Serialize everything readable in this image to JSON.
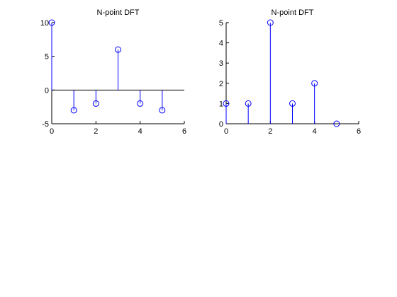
{
  "chart_data": [
    {
      "type": "stem",
      "title": "N-point DFT",
      "x": [
        0,
        1,
        2,
        3,
        4,
        5
      ],
      "values": [
        10,
        -3,
        -2,
        6,
        -2,
        -3
      ],
      "xlim": [
        0,
        6
      ],
      "ylim": [
        -5,
        10
      ],
      "xticks": [
        "0",
        "2",
        "4",
        "6"
      ],
      "yticks": [
        "-5",
        "0",
        "5",
        "10"
      ],
      "series_color": "#0000ff",
      "baseline": 0,
      "grid": false
    },
    {
      "type": "stem",
      "title": "N-point DFT",
      "x": [
        0,
        1,
        2,
        3,
        4,
        5
      ],
      "values": [
        1,
        1,
        5,
        1,
        2,
        0
      ],
      "xlim": [
        0,
        6
      ],
      "ylim": [
        0,
        5
      ],
      "xticks": [
        "0",
        "2",
        "4",
        "6"
      ],
      "yticks": [
        "0",
        "1",
        "2",
        "3",
        "4",
        "5"
      ],
      "series_color": "#0000ff",
      "grid": false
    }
  ]
}
